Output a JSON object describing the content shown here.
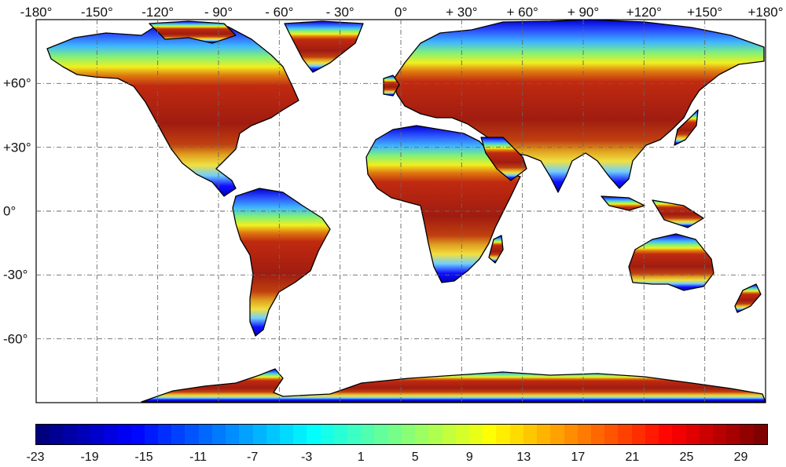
{
  "map": {
    "lon_ticks": [
      {
        "value": -180,
        "label": "-180°"
      },
      {
        "value": -150,
        "label": "-150°"
      },
      {
        "value": -120,
        "label": "-120°"
      },
      {
        "value": -90,
        "label": "- 90°"
      },
      {
        "value": -60,
        "label": "- 60°"
      },
      {
        "value": -30,
        "label": "- 30°"
      },
      {
        "value": 0,
        "label": "0°"
      },
      {
        "value": 30,
        "label": "+ 30°"
      },
      {
        "value": 60,
        "label": "+ 60°"
      },
      {
        "value": 90,
        "label": "+ 90°"
      },
      {
        "value": 120,
        "label": "+120°"
      },
      {
        "value": 150,
        "label": "+150°"
      },
      {
        "value": 180,
        "label": "+180°"
      }
    ],
    "lat_ticks": [
      {
        "value": 60,
        "label": "+60°"
      },
      {
        "value": 30,
        "label": "+30°"
      },
      {
        "value": 0,
        "label": "0°"
      },
      {
        "value": -30,
        "label": "-30°"
      },
      {
        "value": -60,
        "label": "-60°"
      }
    ],
    "lon_range": [
      -180,
      180
    ],
    "lat_range": [
      -90,
      90
    ],
    "grid": "dash-dot",
    "ocean_color": "#ffffff",
    "coastline_color": "#000000"
  },
  "colorbar": {
    "min": -23,
    "max": 31,
    "tick_labels": [
      "-23",
      "-19",
      "-15",
      "-11",
      "-7",
      "-3",
      "1",
      "5",
      "9",
      "13",
      "17",
      "21",
      "25",
      "29"
    ],
    "tick_values": [
      -23,
      -19,
      -15,
      -11,
      -7,
      -3,
      1,
      5,
      9,
      13,
      17,
      21,
      25,
      29
    ],
    "colormap": [
      "#00007f",
      "#0000ff",
      "#007fff",
      "#00ffff",
      "#7fff7f",
      "#ffff00",
      "#ff7f00",
      "#ff0000",
      "#7f0000"
    ]
  }
}
